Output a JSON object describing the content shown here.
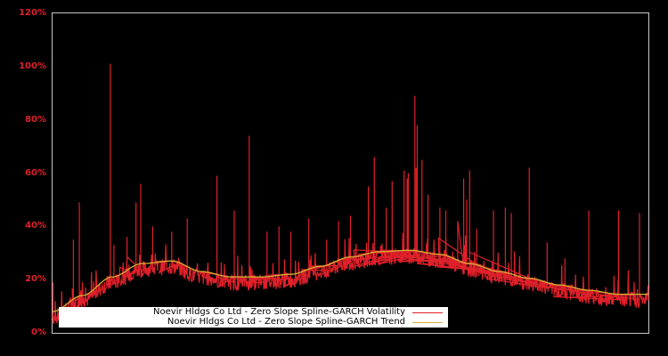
{
  "chart_data": {
    "type": "line",
    "title": "",
    "xlabel": "",
    "ylabel": "",
    "ylim": [
      0,
      120
    ],
    "y_ticks": [
      "0%",
      "20%",
      "40%",
      "60%",
      "80%",
      "100%",
      "120%"
    ],
    "y_tick_values": [
      0,
      20,
      40,
      60,
      80,
      100,
      120
    ],
    "grid": false,
    "legend_position": "lower center",
    "background": "#000000",
    "axis_color": "#c8c8c8",
    "series": [
      {
        "name": "Noevir Hldgs Co Ltd - Zero Slope Spline-GARCH Volatility",
        "color": "#e0202a",
        "style": "noisy line around trend with spikes",
        "baseline_offset": -3,
        "spikes": [
          {
            "x": 0.001,
            "y": 19
          },
          {
            "x": 0.035,
            "y": 35
          },
          {
            "x": 0.045,
            "y": 49
          },
          {
            "x": 0.097,
            "y": 101
          },
          {
            "x": 0.103,
            "y": 33
          },
          {
            "x": 0.125,
            "y": 36
          },
          {
            "x": 0.14,
            "y": 49
          },
          {
            "x": 0.148,
            "y": 56
          },
          {
            "x": 0.168,
            "y": 40
          },
          {
            "x": 0.2,
            "y": 38
          },
          {
            "x": 0.226,
            "y": 43
          },
          {
            "x": 0.276,
            "y": 59
          },
          {
            "x": 0.305,
            "y": 46
          },
          {
            "x": 0.33,
            "y": 74
          },
          {
            "x": 0.36,
            "y": 38
          },
          {
            "x": 0.38,
            "y": 40
          },
          {
            "x": 0.4,
            "y": 38
          },
          {
            "x": 0.43,
            "y": 43
          },
          {
            "x": 0.46,
            "y": 35
          },
          {
            "x": 0.48,
            "y": 42
          },
          {
            "x": 0.5,
            "y": 44
          },
          {
            "x": 0.53,
            "y": 55
          },
          {
            "x": 0.54,
            "y": 66
          },
          {
            "x": 0.56,
            "y": 47
          },
          {
            "x": 0.57,
            "y": 57
          },
          {
            "x": 0.59,
            "y": 61
          },
          {
            "x": 0.608,
            "y": 89
          },
          {
            "x": 0.612,
            "y": 78
          },
          {
            "x": 0.62,
            "y": 65
          },
          {
            "x": 0.63,
            "y": 52
          },
          {
            "x": 0.65,
            "y": 47
          },
          {
            "x": 0.68,
            "y": 42
          },
          {
            "x": 0.595,
            "y": 58
          },
          {
            "x": 0.597,
            "y": 60
          },
          {
            "x": 0.61,
            "y": 62
          },
          {
            "x": 0.66,
            "y": 46
          },
          {
            "x": 0.69,
            "y": 58
          },
          {
            "x": 0.695,
            "y": 50
          },
          {
            "x": 0.7,
            "y": 61
          },
          {
            "x": 0.712,
            "y": 39
          },
          {
            "x": 0.74,
            "y": 46
          },
          {
            "x": 0.76,
            "y": 47
          },
          {
            "x": 0.77,
            "y": 45
          },
          {
            "x": 0.8,
            "y": 62
          },
          {
            "x": 0.83,
            "y": 34
          },
          {
            "x": 0.86,
            "y": 28
          },
          {
            "x": 0.9,
            "y": 46
          },
          {
            "x": 0.95,
            "y": 46
          },
          {
            "x": 0.985,
            "y": 45
          }
        ]
      },
      {
        "name": "Noevir Hldgs Co Ltd - Zero Slope Spline-GARCH Trend",
        "color": "#d4b030",
        "x": [
          0.0,
          0.05,
          0.1,
          0.15,
          0.2,
          0.25,
          0.3,
          0.35,
          0.4,
          0.45,
          0.5,
          0.55,
          0.6,
          0.65,
          0.7,
          0.75,
          0.8,
          0.85,
          0.9,
          0.95,
          1.0
        ],
        "values": [
          8,
          14,
          21,
          26,
          27,
          23,
          21,
          21,
          22,
          25,
          28.5,
          30.5,
          31,
          29.5,
          26,
          23,
          20.5,
          18,
          16,
          14.5,
          14.5
        ]
      }
    ]
  },
  "legend": {
    "items": [
      {
        "label": "Noevir Hldgs Co Ltd - Zero Slope Spline-GARCH Volatility",
        "color": "#e0202a"
      },
      {
        "label": "Noevir Hldgs Co Ltd - Zero Slope Spline-GARCH Trend",
        "color": "#d4b030"
      }
    ]
  }
}
